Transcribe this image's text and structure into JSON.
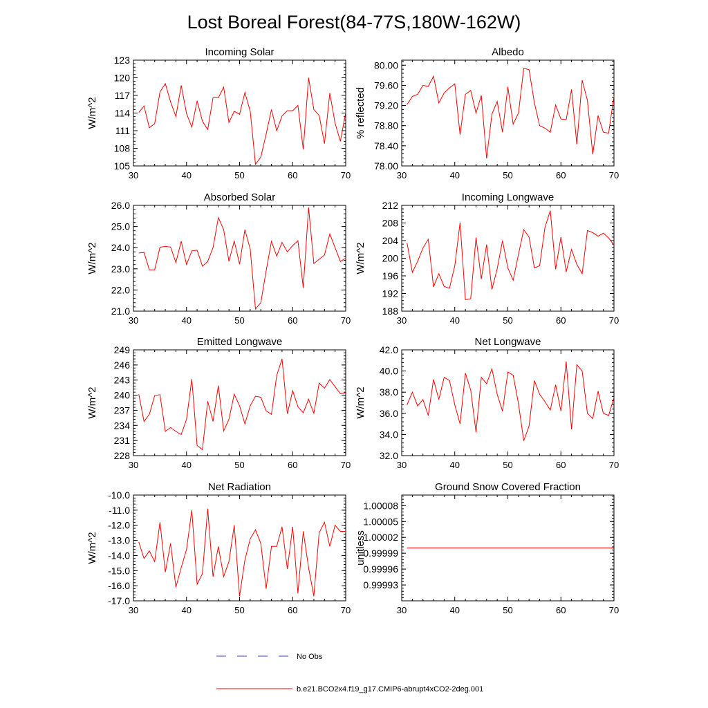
{
  "figure_title": "Lost Boreal Forest(84-77S,180W-162W)",
  "legend": {
    "obs_label": "No Obs",
    "model_label": "b.e21.BCO2x4.f19_g17.CMIP6-abrupt4xCO2-2deg.001",
    "obs_color": "#3b3bcc",
    "model_color": "#ff0000"
  },
  "chart_data": [
    {
      "type": "line",
      "title": "Incoming Solar",
      "ylabel": "W/m^2",
      "xlim": [
        30,
        70
      ],
      "xticks": [
        "30",
        "40",
        "50",
        "60",
        "70"
      ],
      "ylim": [
        105,
        123
      ],
      "yticks": [
        "105",
        "108",
        "111",
        "114",
        "117",
        "120",
        "123"
      ],
      "x": [
        31,
        32,
        33,
        34,
        35,
        36,
        37,
        38,
        39,
        40,
        41,
        42,
        43,
        44,
        45,
        46,
        47,
        48,
        49,
        50,
        51,
        52,
        53,
        54,
        55,
        56,
        57,
        58,
        59,
        60,
        61,
        62,
        63,
        64,
        65,
        66,
        67,
        68,
        69,
        70
      ],
      "values": [
        114.1,
        115.2,
        111.5,
        112.2,
        117.6,
        119.0,
        115.9,
        113.4,
        118.7,
        113.9,
        111.6,
        116.1,
        112.6,
        111.2,
        116.6,
        116.6,
        118.4,
        112.4,
        114.3,
        113.8,
        117.5,
        114.3,
        105.3,
        106.5,
        110.4,
        114.6,
        111.0,
        113.5,
        114.4,
        114.4,
        115.3,
        107.8,
        120.0,
        114.6,
        113.6,
        108.8,
        117.4,
        112.3,
        109.2,
        114.1
      ]
    },
    {
      "type": "line",
      "title": "Albedo",
      "ylabel": "% reflected",
      "xlim": [
        30,
        70
      ],
      "xticks": [
        "30",
        "40",
        "50",
        "60",
        "70"
      ],
      "ylim": [
        78.0,
        80.1
      ],
      "yticks": [
        "78.00",
        "78.40",
        "78.80",
        "79.20",
        "79.60",
        "80.00"
      ],
      "x": [
        31,
        32,
        33,
        34,
        35,
        36,
        37,
        38,
        39,
        40,
        41,
        42,
        43,
        44,
        45,
        46,
        47,
        48,
        49,
        50,
        51,
        52,
        53,
        54,
        55,
        56,
        57,
        58,
        59,
        60,
        61,
        62,
        63,
        64,
        65,
        66,
        67,
        68,
        69,
        70
      ],
      "values": [
        79.22,
        79.38,
        79.42,
        79.6,
        79.58,
        79.78,
        79.25,
        79.45,
        79.55,
        79.63,
        78.62,
        79.42,
        79.5,
        79.05,
        79.4,
        78.15,
        79.03,
        79.28,
        78.67,
        79.57,
        78.83,
        79.05,
        79.94,
        79.91,
        79.25,
        78.8,
        78.75,
        78.67,
        79.21,
        78.93,
        78.92,
        79.52,
        78.43,
        79.7,
        79.3,
        78.23,
        79.0,
        78.67,
        78.65,
        79.39
      ]
    },
    {
      "type": "line",
      "title": "Absorbed Solar",
      "ylabel": "W/m^2",
      "xlim": [
        30,
        70
      ],
      "xticks": [
        "30",
        "40",
        "50",
        "60",
        "70"
      ],
      "ylim": [
        21.0,
        26.0
      ],
      "yticks": [
        "21.0",
        "22.0",
        "23.0",
        "24.0",
        "25.0",
        "26.0"
      ],
      "x": [
        31,
        32,
        33,
        34,
        35,
        36,
        37,
        38,
        39,
        40,
        41,
        42,
        43,
        44,
        45,
        46,
        47,
        48,
        49,
        50,
        51,
        52,
        53,
        54,
        55,
        56,
        57,
        58,
        59,
        60,
        61,
        62,
        63,
        64,
        65,
        66,
        67,
        68,
        69,
        70
      ],
      "values": [
        23.75,
        23.77,
        22.95,
        22.95,
        24.02,
        24.06,
        24.03,
        23.3,
        24.3,
        23.2,
        23.85,
        23.88,
        23.12,
        23.35,
        24.0,
        25.42,
        24.85,
        23.35,
        24.32,
        23.22,
        24.85,
        23.93,
        21.1,
        21.4,
        22.9,
        24.3,
        23.6,
        24.25,
        23.8,
        24.1,
        24.33,
        22.1,
        25.9,
        23.25,
        23.45,
        23.65,
        24.65,
        24.0,
        23.35,
        23.5
      ]
    },
    {
      "type": "line",
      "title": "Incoming Longwave",
      "ylabel": "W/m^2",
      "xlim": [
        30,
        70
      ],
      "xticks": [
        "30",
        "40",
        "50",
        "60",
        "70"
      ],
      "ylim": [
        188,
        212
      ],
      "yticks": [
        "188",
        "192",
        "196",
        "200",
        "204",
        "208",
        "212"
      ],
      "x": [
        31,
        32,
        33,
        34,
        35,
        36,
        37,
        38,
        39,
        40,
        41,
        42,
        43,
        44,
        45,
        46,
        47,
        48,
        49,
        50,
        51,
        52,
        53,
        54,
        55,
        56,
        57,
        58,
        59,
        60,
        61,
        62,
        63,
        64,
        65,
        66,
        67,
        68,
        69,
        70
      ],
      "values": [
        203.5,
        196.8,
        199.3,
        202.3,
        204.3,
        193.5,
        196.5,
        193.6,
        193.2,
        198.3,
        208.1,
        190.6,
        190.8,
        204.7,
        195.3,
        203.1,
        192.9,
        197.6,
        204.0,
        197.8,
        195.0,
        200.9,
        206.5,
        204.8,
        197.8,
        198.3,
        207.0,
        210.8,
        197.5,
        204.8,
        196.9,
        202.0,
        198.6,
        196.5,
        206.3,
        205.8,
        205.0,
        205.7,
        204.6,
        203.0
      ]
    },
    {
      "type": "line",
      "title": "Emitted Longwave",
      "ylabel": "W/m^2",
      "xlim": [
        30,
        70
      ],
      "xticks": [
        "30",
        "40",
        "50",
        "60",
        "70"
      ],
      "ylim": [
        228,
        249
      ],
      "yticks": [
        "228",
        "231",
        "234",
        "237",
        "240",
        "243",
        "246",
        "249"
      ],
      "x": [
        31,
        32,
        33,
        34,
        35,
        36,
        37,
        38,
        39,
        40,
        41,
        42,
        43,
        44,
        45,
        46,
        47,
        48,
        49,
        50,
        51,
        52,
        53,
        54,
        55,
        56,
        57,
        58,
        59,
        60,
        61,
        62,
        63,
        64,
        65,
        66,
        67,
        68,
        69,
        70
      ],
      "values": [
        240.2,
        234.8,
        236.2,
        239.9,
        240.1,
        232.8,
        233.6,
        232.8,
        232.2,
        235.2,
        243.2,
        230.0,
        229.2,
        238.8,
        234.8,
        241.9,
        232.9,
        235.2,
        240.2,
        237.9,
        234.3,
        237.9,
        239.8,
        239.6,
        236.9,
        236.2,
        243.9,
        247.2,
        236.3,
        240.9,
        237.7,
        236.5,
        239.2,
        236.4,
        242.4,
        241.4,
        243.1,
        241.7,
        240.3,
        240.5
      ]
    },
    {
      "type": "line",
      "title": "Net Longwave",
      "ylabel": "W/m^2",
      "xlim": [
        30,
        70
      ],
      "xticks": [
        "30",
        "40",
        "50",
        "60",
        "70"
      ],
      "ylim": [
        32.0,
        42.0
      ],
      "yticks": [
        "32.0",
        "34.0",
        "36.0",
        "38.0",
        "40.0",
        "42.0"
      ],
      "x": [
        31,
        32,
        33,
        34,
        35,
        36,
        37,
        38,
        39,
        40,
        41,
        42,
        43,
        44,
        45,
        46,
        47,
        48,
        49,
        50,
        51,
        52,
        53,
        54,
        55,
        56,
        57,
        58,
        59,
        60,
        61,
        62,
        63,
        64,
        65,
        66,
        67,
        68,
        69,
        70
      ],
      "values": [
        36.8,
        38.0,
        36.7,
        37.3,
        35.8,
        39.2,
        37.3,
        39.4,
        39.1,
        36.8,
        35.0,
        39.8,
        38.2,
        34.2,
        39.4,
        38.8,
        40.2,
        37.8,
        36.2,
        39.9,
        39.6,
        36.9,
        33.4,
        34.8,
        39.1,
        37.8,
        37.1,
        36.3,
        38.7,
        36.2,
        40.9,
        34.5,
        40.6,
        40.0,
        36.0,
        35.5,
        38.1,
        36.0,
        35.8,
        37.5
      ]
    },
    {
      "type": "line",
      "title": "Net Radiation",
      "ylabel": "W/m^2",
      "xlim": [
        30,
        70
      ],
      "xticks": [
        "30",
        "40",
        "50",
        "60",
        "70"
      ],
      "ylim": [
        -17.0,
        -10.0
      ],
      "yticks": [
        "-17.0",
        "-16.0",
        "-15.0",
        "-14.0",
        "-13.0",
        "-12.0",
        "-11.0",
        "-10.0"
      ],
      "x": [
        31,
        32,
        33,
        34,
        35,
        36,
        37,
        38,
        39,
        40,
        41,
        42,
        43,
        44,
        45,
        46,
        47,
        48,
        49,
        50,
        51,
        52,
        53,
        54,
        55,
        56,
        57,
        58,
        59,
        60,
        61,
        62,
        63,
        64,
        65,
        66,
        67,
        68,
        69,
        70
      ],
      "values": [
        -13.1,
        -14.2,
        -13.7,
        -14.4,
        -11.8,
        -15.1,
        -13.2,
        -16.1,
        -14.8,
        -13.6,
        -11.0,
        -15.9,
        -15.2,
        -10.9,
        -15.4,
        -13.4,
        -15.4,
        -14.4,
        -12.0,
        -16.7,
        -14.3,
        -12.9,
        -12.3,
        -13.2,
        -16.2,
        -13.4,
        -13.4,
        -12.1,
        -14.9,
        -12.1,
        -16.5,
        -12.4,
        -14.8,
        -16.7,
        -12.5,
        -11.8,
        -13.4,
        -12.0,
        -12.4,
        -12.4
      ]
    },
    {
      "type": "line",
      "title": "Ground Snow Covered Fraction",
      "ylabel": "unitless",
      "xlim": [
        30,
        70
      ],
      "xticks": [
        "30",
        "40",
        "50",
        "60",
        "70"
      ],
      "ylim": [
        0.9999,
        1.0001
      ],
      "yticks": [
        "0.99993",
        "0.99996",
        "0.99999",
        "1.00002",
        "1.00005",
        "1.00008"
      ],
      "x": [
        31,
        70
      ],
      "values": [
        1.0,
        1.0
      ]
    }
  ]
}
